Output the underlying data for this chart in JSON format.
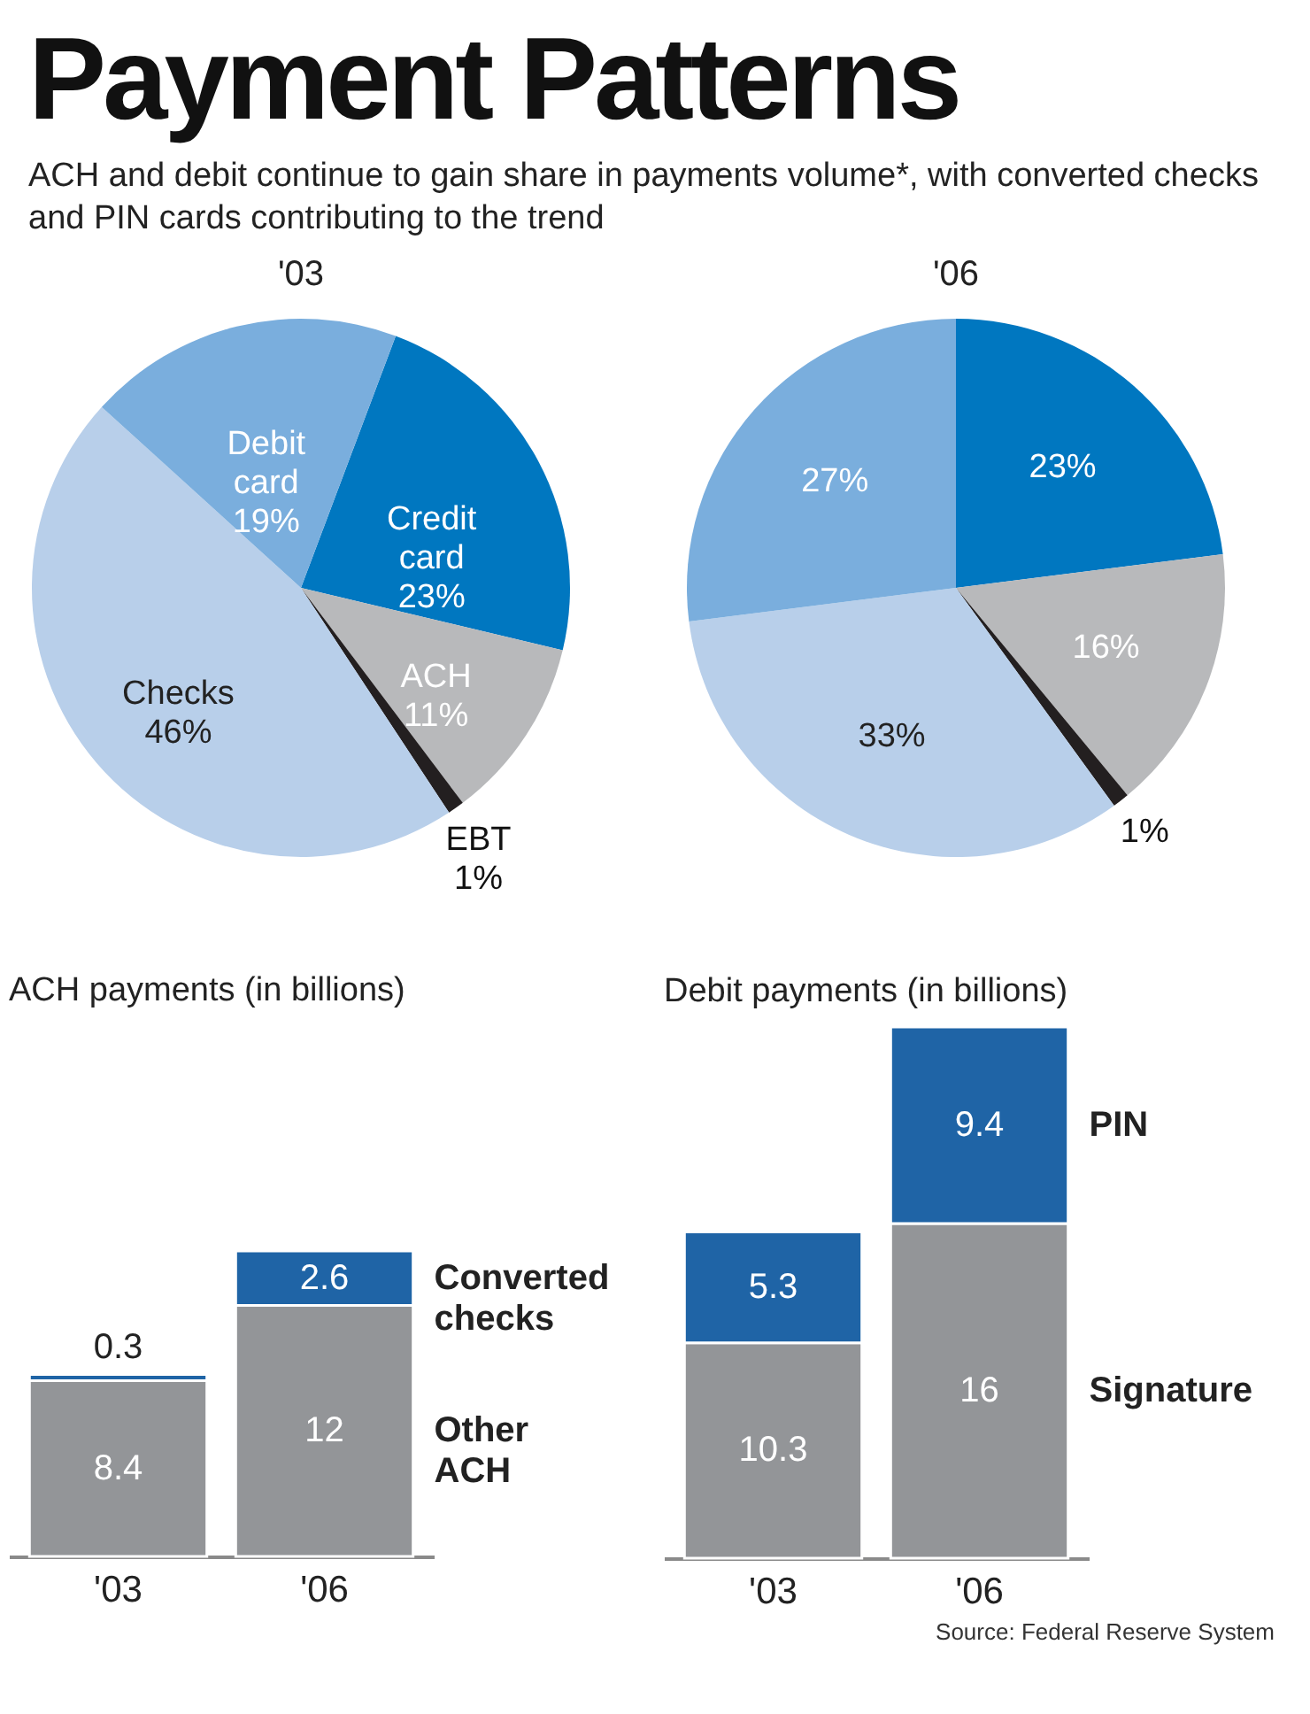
{
  "chart_data": [
    {
      "type": "other",
      "title": "Payment Patterns",
      "subtitle": "ACH and debit continue to gain share in payments volume*, with converted checks and PIN cards contributing to the trend"
    },
    {
      "type": "pie",
      "title": "'03",
      "categories": [
        "Credit card",
        "ACH",
        "EBT",
        "Checks",
        "Debit card"
      ],
      "values": [
        23,
        11,
        1,
        46,
        19
      ],
      "colors": [
        "#0077c0",
        "#b8b9bb",
        "#231f20",
        "#b8cfea",
        "#7aaedd"
      ],
      "value_labels": [
        "23%",
        "11%",
        "1%",
        "46%",
        "19%"
      ]
    },
    {
      "type": "pie",
      "title": "'06",
      "categories": [
        null,
        null,
        null,
        null,
        null
      ],
      "values": [
        23,
        16,
        1,
        33,
        27
      ],
      "colors": [
        "#0077c0",
        "#b8b9bb",
        "#231f20",
        "#b8cfea",
        "#7aaedd"
      ],
      "value_labels": [
        "23%",
        "16%",
        "1%",
        "33%",
        "27%"
      ]
    },
    {
      "type": "bar",
      "title": "ACH payments (in billions)",
      "categories": [
        "'03",
        "'06"
      ],
      "stacked": true,
      "data_labels": true,
      "series": [
        {
          "name": "Other ACH",
          "color": "#939598",
          "values": [
            8.4,
            12
          ]
        },
        {
          "name": "Converted checks",
          "color": "#1f64a6",
          "values": [
            0.3,
            2.6
          ]
        }
      ]
    },
    {
      "type": "bar",
      "title": "Debit payments (in billions)",
      "categories": [
        "'03",
        "'06"
      ],
      "stacked": true,
      "data_labels": true,
      "series": [
        {
          "name": "Signature",
          "color": "#939598",
          "values": [
            10.3,
            16
          ]
        },
        {
          "name": "PIN",
          "color": "#1f64a6",
          "values": [
            5.3,
            9.4
          ]
        }
      ],
      "annotations": [
        "Source: Federal Reserve System"
      ]
    }
  ]
}
